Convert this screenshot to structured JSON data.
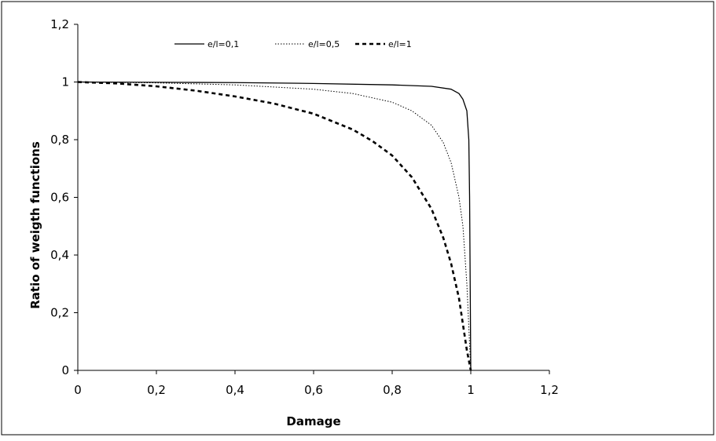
{
  "chart_data": {
    "type": "line",
    "title": "",
    "xlabel": "Damage",
    "ylabel": "Ratio of weigth functions",
    "xlim": [
      0,
      1.2
    ],
    "ylim": [
      0,
      1.2
    ],
    "x_ticks": [
      "0",
      "0,2",
      "0,4",
      "0,6",
      "0,8",
      "1",
      "1,2"
    ],
    "y_ticks": [
      "0",
      "0,2",
      "0,4",
      "0,6",
      "0,8",
      "1",
      "1,2"
    ],
    "grid": false,
    "legend_position": "top-right",
    "series": [
      {
        "name": "e/l=0,1",
        "style": "solid",
        "color": "#000000",
        "points": [
          [
            0,
            1
          ],
          [
            0.2,
            0.999
          ],
          [
            0.4,
            0.998
          ],
          [
            0.6,
            0.995
          ],
          [
            0.8,
            0.99
          ],
          [
            0.9,
            0.985
          ],
          [
            0.95,
            0.975
          ],
          [
            0.97,
            0.96
          ],
          [
            0.98,
            0.94
          ],
          [
            0.99,
            0.9
          ],
          [
            0.995,
            0.8
          ],
          [
            0.997,
            0.6
          ],
          [
            0.998,
            0.4
          ],
          [
            0.999,
            0.2
          ],
          [
            1,
            0
          ]
        ]
      },
      {
        "name": "e/l=0,5",
        "style": "dotted",
        "color": "#000000",
        "points": [
          [
            0,
            1
          ],
          [
            0.2,
            0.997
          ],
          [
            0.4,
            0.99
          ],
          [
            0.6,
            0.975
          ],
          [
            0.7,
            0.96
          ],
          [
            0.8,
            0.93
          ],
          [
            0.85,
            0.9
          ],
          [
            0.9,
            0.85
          ],
          [
            0.93,
            0.79
          ],
          [
            0.95,
            0.72
          ],
          [
            0.97,
            0.6
          ],
          [
            0.98,
            0.5
          ],
          [
            0.99,
            0.3
          ],
          [
            0.995,
            0.15
          ],
          [
            1,
            0
          ]
        ]
      },
      {
        "name": "e/l=1",
        "style": "dashed",
        "color": "#000000",
        "points": [
          [
            0,
            1
          ],
          [
            0.1,
            0.995
          ],
          [
            0.2,
            0.985
          ],
          [
            0.3,
            0.97
          ],
          [
            0.4,
            0.95
          ],
          [
            0.5,
            0.925
          ],
          [
            0.6,
            0.89
          ],
          [
            0.7,
            0.835
          ],
          [
            0.75,
            0.795
          ],
          [
            0.8,
            0.745
          ],
          [
            0.85,
            0.67
          ],
          [
            0.9,
            0.56
          ],
          [
            0.93,
            0.46
          ],
          [
            0.95,
            0.37
          ],
          [
            0.97,
            0.25
          ],
          [
            0.98,
            0.16
          ],
          [
            0.99,
            0.07
          ],
          [
            1,
            0
          ]
        ]
      }
    ]
  }
}
